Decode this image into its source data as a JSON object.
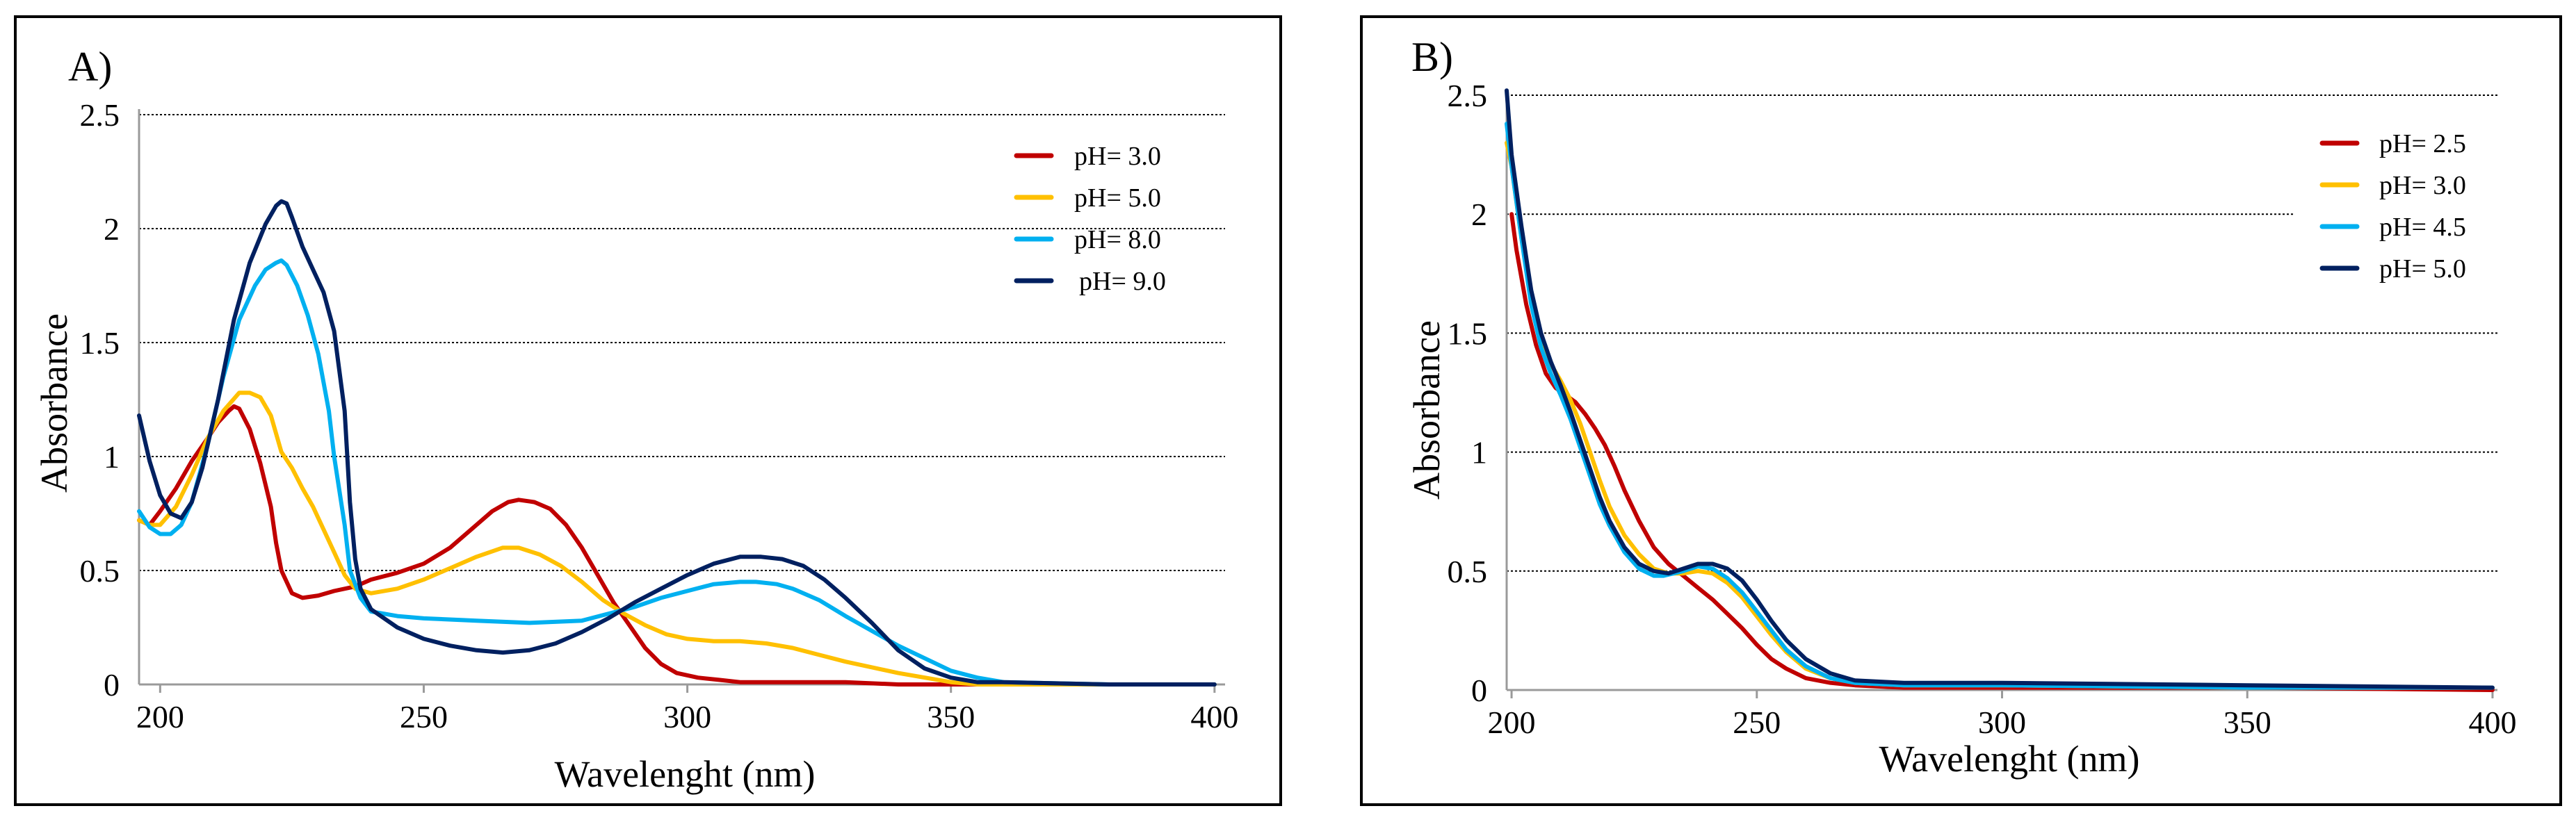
{
  "chart_data": [
    {
      "type": "line",
      "panel": "A)",
      "xlabel": "Wavelenght (nm)",
      "ylabel": "Absorbance",
      "xlim": [
        196,
        402
      ],
      "ylim": [
        0,
        2.5
      ],
      "xticks": [
        "200",
        "250",
        "300",
        "350",
        "400"
      ],
      "xtick_values": [
        200,
        250,
        300,
        350,
        400
      ],
      "yticks": [
        "0",
        "0.5",
        "1",
        "1.5",
        "2",
        "2.5"
      ],
      "ytick_values": [
        0,
        0.5,
        1,
        1.5,
        2,
        2.5
      ],
      "grid": "horizontal dashed",
      "legend_position": "top-right",
      "series": [
        {
          "name": "pH= 3.0",
          "color": "#c00000",
          "x": [
            196,
            198,
            200,
            203,
            206,
            209,
            211,
            213,
            214,
            215,
            217,
            219,
            221,
            222,
            223,
            225,
            227,
            230,
            233,
            237,
            240,
            245,
            250,
            255,
            260,
            263,
            266,
            268,
            271,
            274,
            277,
            280,
            283,
            286,
            289,
            292,
            295,
            298,
            302,
            306,
            310,
            315,
            320,
            330,
            340,
            360,
            400
          ],
          "y": [
            0.72,
            0.7,
            0.76,
            0.86,
            0.98,
            1.08,
            1.15,
            1.2,
            1.22,
            1.21,
            1.12,
            0.97,
            0.78,
            0.62,
            0.5,
            0.4,
            0.38,
            0.39,
            0.41,
            0.43,
            0.46,
            0.49,
            0.53,
            0.6,
            0.7,
            0.76,
            0.8,
            0.81,
            0.8,
            0.77,
            0.7,
            0.6,
            0.48,
            0.36,
            0.26,
            0.16,
            0.09,
            0.05,
            0.03,
            0.02,
            0.01,
            0.01,
            0.01,
            0.01,
            0.0,
            0.0,
            0.0
          ]
        },
        {
          "name": "pH= 5.0",
          "color": "#ffc000",
          "x": [
            196,
            198,
            200,
            203,
            206,
            209,
            212,
            215,
            217,
            219,
            221,
            223,
            225,
            227,
            229,
            231,
            233,
            235,
            237,
            240,
            245,
            250,
            255,
            260,
            265,
            268,
            272,
            276,
            280,
            284,
            288,
            292,
            296,
            300,
            305,
            310,
            315,
            320,
            325,
            330,
            340,
            350,
            355,
            360,
            380,
            400
          ],
          "y": [
            0.72,
            0.7,
            0.7,
            0.78,
            0.92,
            1.08,
            1.2,
            1.28,
            1.28,
            1.26,
            1.18,
            1.02,
            0.95,
            0.86,
            0.78,
            0.68,
            0.58,
            0.48,
            0.42,
            0.4,
            0.42,
            0.46,
            0.51,
            0.56,
            0.6,
            0.6,
            0.57,
            0.52,
            0.45,
            0.37,
            0.31,
            0.26,
            0.22,
            0.2,
            0.19,
            0.19,
            0.18,
            0.16,
            0.13,
            0.1,
            0.05,
            0.01,
            0.0,
            0.0,
            0.0,
            0.0
          ]
        },
        {
          "name": "pH= 8.0",
          "color": "#00b0f0",
          "x": [
            196,
            198,
            200,
            202,
            204,
            206,
            209,
            212,
            215,
            218,
            220,
            222,
            223,
            224,
            226,
            228,
            230,
            232,
            233,
            235,
            236,
            238,
            240,
            245,
            250,
            260,
            270,
            280,
            285,
            290,
            295,
            300,
            305,
            310,
            313,
            317,
            320,
            325,
            330,
            340,
            350,
            355,
            360,
            380,
            400
          ],
          "y": [
            0.76,
            0.69,
            0.66,
            0.66,
            0.7,
            0.8,
            1.05,
            1.35,
            1.6,
            1.75,
            1.82,
            1.85,
            1.86,
            1.84,
            1.75,
            1.62,
            1.45,
            1.2,
            1.0,
            0.7,
            0.5,
            0.38,
            0.32,
            0.3,
            0.29,
            0.28,
            0.27,
            0.28,
            0.31,
            0.34,
            0.38,
            0.41,
            0.44,
            0.45,
            0.45,
            0.44,
            0.42,
            0.37,
            0.3,
            0.17,
            0.06,
            0.03,
            0.01,
            0.0,
            0.0
          ]
        },
        {
          "name": "pH= 9.0",
          "color": "#002060",
          "x": [
            196,
            198,
            200,
            202,
            204,
            206,
            208,
            211,
            214,
            217,
            220,
            222,
            223,
            224,
            225,
            227,
            229,
            231,
            233,
            235,
            236,
            237,
            238,
            240,
            245,
            250,
            255,
            260,
            265,
            270,
            275,
            280,
            285,
            290,
            295,
            300,
            305,
            310,
            314,
            318,
            322,
            326,
            330,
            335,
            340,
            345,
            350,
            355,
            360,
            380,
            400
          ],
          "y": [
            1.18,
            0.98,
            0.83,
            0.75,
            0.73,
            0.8,
            0.95,
            1.25,
            1.6,
            1.85,
            2.02,
            2.1,
            2.12,
            2.11,
            2.05,
            1.92,
            1.82,
            1.72,
            1.55,
            1.2,
            0.8,
            0.55,
            0.42,
            0.33,
            0.25,
            0.2,
            0.17,
            0.15,
            0.14,
            0.15,
            0.18,
            0.23,
            0.29,
            0.36,
            0.42,
            0.48,
            0.53,
            0.56,
            0.56,
            0.55,
            0.52,
            0.46,
            0.38,
            0.27,
            0.15,
            0.07,
            0.03,
            0.01,
            0.01,
            0.0,
            0.0
          ]
        }
      ]
    },
    {
      "type": "line",
      "panel": "B)",
      "xlabel": "Wavelenght (nm)",
      "ylabel": "Absorbance",
      "xlim": [
        199,
        401
      ],
      "ylim": [
        0,
        2.5
      ],
      "xticks": [
        "200",
        "250",
        "300",
        "350",
        "400"
      ],
      "xtick_values": [
        200,
        250,
        300,
        350,
        400
      ],
      "yticks": [
        "0",
        "0.5",
        "1",
        "1.5",
        "2",
        "2.5"
      ],
      "ytick_values": [
        0,
        0.5,
        1,
        1.5,
        2,
        2.5
      ],
      "grid": "horizontal dashed",
      "legend_position": "top-right",
      "series": [
        {
          "name": "pH= 2.5",
          "color": "#c00000",
          "x": [
            200,
            201,
            203,
            205,
            207,
            209,
            211,
            213,
            215,
            217,
            219,
            221,
            223,
            226,
            229,
            232,
            235,
            238,
            241,
            244,
            247,
            250,
            253,
            256,
            260,
            265,
            270,
            280,
            300,
            350,
            400
          ],
          "y": [
            2.0,
            1.85,
            1.62,
            1.45,
            1.33,
            1.27,
            1.24,
            1.21,
            1.16,
            1.1,
            1.03,
            0.94,
            0.84,
            0.71,
            0.6,
            0.53,
            0.48,
            0.43,
            0.38,
            0.32,
            0.26,
            0.19,
            0.13,
            0.09,
            0.05,
            0.03,
            0.02,
            0.01,
            0.01,
            0.01,
            0.0
          ]
        },
        {
          "name": "pH= 3.0",
          "color": "#ffc000",
          "x": [
            199,
            200,
            202,
            204,
            206,
            208,
            210,
            212,
            214,
            216,
            218,
            220,
            223,
            226,
            229,
            232,
            235,
            238,
            241,
            244,
            247,
            250,
            253,
            256,
            260,
            265,
            270,
            280,
            300,
            350,
            400
          ],
          "y": [
            2.3,
            2.2,
            1.9,
            1.65,
            1.48,
            1.37,
            1.3,
            1.22,
            1.12,
            1.0,
            0.88,
            0.77,
            0.65,
            0.57,
            0.51,
            0.49,
            0.49,
            0.5,
            0.49,
            0.45,
            0.39,
            0.31,
            0.23,
            0.16,
            0.09,
            0.05,
            0.03,
            0.02,
            0.02,
            0.01,
            0.01
          ]
        },
        {
          "name": "pH= 4.5",
          "color": "#00b0f0",
          "x": [
            199,
            200,
            202,
            204,
            206,
            208,
            210,
            212,
            214,
            216,
            218,
            220,
            223,
            226,
            229,
            231,
            233,
            235,
            238,
            241,
            244,
            247,
            250,
            253,
            256,
            260,
            265,
            270,
            280,
            300,
            350,
            400
          ],
          "y": [
            2.38,
            2.2,
            1.9,
            1.62,
            1.44,
            1.33,
            1.24,
            1.14,
            1.02,
            0.9,
            0.78,
            0.69,
            0.58,
            0.51,
            0.48,
            0.48,
            0.49,
            0.5,
            0.52,
            0.51,
            0.47,
            0.41,
            0.33,
            0.25,
            0.17,
            0.1,
            0.05,
            0.03,
            0.02,
            0.02,
            0.01,
            0.01
          ]
        },
        {
          "name": "pH= 5.0",
          "color": "#002060",
          "x": [
            199,
            200,
            202,
            204,
            206,
            208,
            210,
            212,
            214,
            216,
            218,
            220,
            223,
            226,
            229,
            232,
            235,
            238,
            241,
            244,
            247,
            250,
            253,
            256,
            260,
            265,
            270,
            280,
            300,
            350,
            400
          ],
          "y": [
            2.52,
            2.25,
            1.95,
            1.68,
            1.5,
            1.38,
            1.28,
            1.17,
            1.05,
            0.93,
            0.81,
            0.71,
            0.6,
            0.53,
            0.5,
            0.49,
            0.51,
            0.53,
            0.53,
            0.51,
            0.46,
            0.38,
            0.29,
            0.21,
            0.13,
            0.07,
            0.04,
            0.03,
            0.03,
            0.02,
            0.01
          ]
        }
      ]
    }
  ]
}
